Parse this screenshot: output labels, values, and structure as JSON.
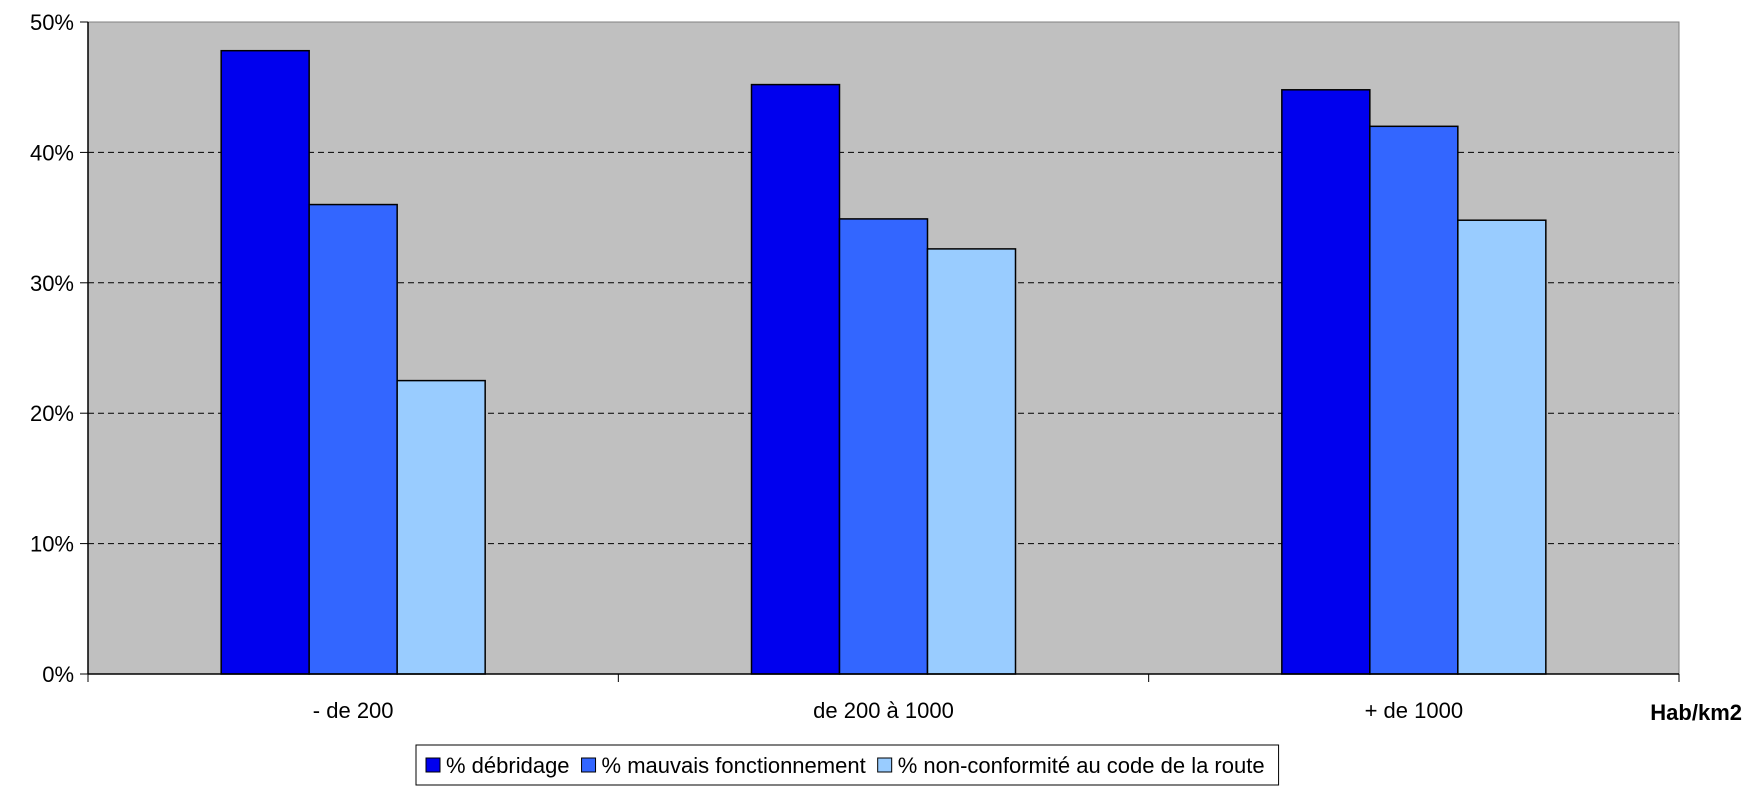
{
  "chart_data": {
    "type": "bar",
    "categories": [
      "- de 200",
      "de 200 à 1000",
      "+ de 1000"
    ],
    "series": [
      {
        "name": "% débridage",
        "values": [
          47.8,
          45.2,
          44.8
        ],
        "color": "#0000ee"
      },
      {
        "name": "% mauvais fonctionnement",
        "values": [
          36.0,
          34.9,
          42.0
        ],
        "color": "#3366ff"
      },
      {
        "name": "% non-conformité au code de la route",
        "values": [
          22.5,
          32.6,
          34.8
        ],
        "color": "#99ccff"
      }
    ],
    "xlabel": "Hab/km2",
    "ylabel": "",
    "ylim": [
      0,
      50
    ],
    "yticks": [
      "0%",
      "10%",
      "20%",
      "30%",
      "40%",
      "50%"
    ],
    "grid": true,
    "legend_position": "bottom",
    "plot_background": "#c0c0c0"
  }
}
